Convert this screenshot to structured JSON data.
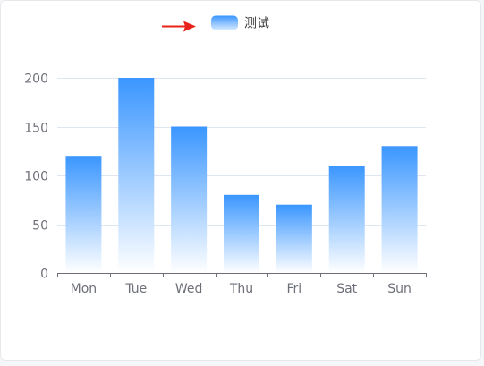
{
  "legend": {
    "label": "测试"
  },
  "colors": {
    "bar_top": "#3a96ff",
    "bar_bottom": "#ffffff",
    "axis": "#6e7079",
    "grid": "#e0e6f1",
    "label": "#6e7079",
    "arrow": "#e8231a"
  },
  "chart_data": {
    "type": "bar",
    "title": "",
    "xlabel": "",
    "ylabel": "",
    "categories": [
      "Mon",
      "Tue",
      "Wed",
      "Thu",
      "Fri",
      "Sat",
      "Sun"
    ],
    "series": [
      {
        "name": "测试",
        "values": [
          120,
          200,
          150,
          80,
          70,
          110,
          130
        ]
      }
    ],
    "ylim": [
      0,
      200
    ],
    "yticks": [
      0,
      50,
      100,
      150,
      200
    ],
    "grid": true,
    "legend_position": "top-center"
  }
}
